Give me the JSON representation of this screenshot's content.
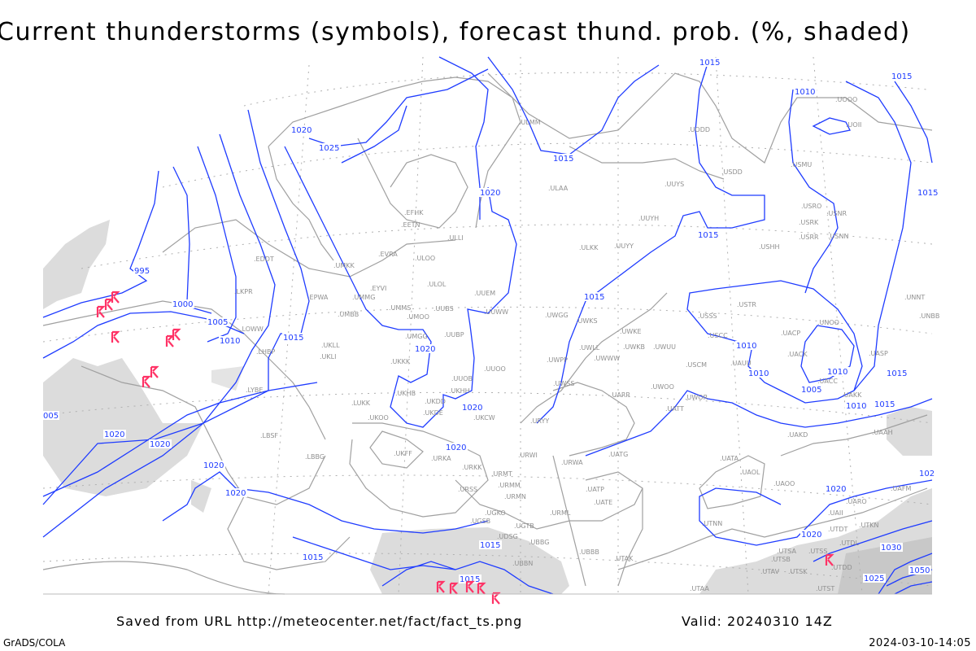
{
  "title": "Current thunderstorms (symbols), forecast thund. prob. (%, shaded)",
  "footer": {
    "saved_from": "Saved from URL http://meteocenter.net/fact/fact_ts.png",
    "valid": "Valid: 20240310 14Z",
    "software": "GrADS/COLA",
    "generated": "2024-03-10-14:05"
  },
  "colors": {
    "isobar": "#1f3cff",
    "coastline": "#a0a0a0",
    "thunderstorm_symbol": "#ff3366",
    "probability_shade": "#d8d8d8",
    "grid": "#a0a0a0"
  },
  "legend_symbols": {
    "thunderstorm": "thunderstorm-symbol-icon"
  },
  "isobar_labels": [
    "995",
    "1000",
    "1005",
    "1010",
    "1015",
    "1020",
    "1025",
    "1020",
    "1015",
    "1010",
    "1015",
    "1020",
    "1020",
    "1015",
    "1010",
    "1015",
    "1020",
    "1020",
    "1020",
    "1020",
    "1015",
    "1015",
    "1020",
    "1015",
    "1015",
    "1015",
    "1010",
    "1015",
    "1010",
    "1005",
    "1010",
    "1015",
    "1020",
    "1020",
    "1025",
    "1030",
    "1050",
    "005",
    "102"
  ],
  "stations": [
    "ULMM",
    "ULAA",
    "UUYS",
    "USDD",
    "USMU",
    "UODD",
    "UOOO",
    "UOII",
    "UUYH",
    "USRO",
    "USRK",
    "USNR",
    "USRR",
    "USNN",
    "ULKK",
    "UUYY",
    "USHH",
    "EFHK",
    "EETN",
    "ULLI",
    "EVRA",
    "ULOO",
    "UMKK",
    "EDDT",
    "EYVI",
    "ULOL",
    "UUEM",
    "EPWA",
    "UMMG",
    "LKPR",
    "UMMS",
    "UMOO",
    "UUBS",
    "UUWW",
    "UWGG",
    "UWKS",
    "UMBB",
    "LOWW",
    "UMGG",
    "UUBP",
    "UWKE",
    "UWKB",
    "UWUU",
    "UWLL",
    "UWWW",
    "USSS",
    "USTR",
    "USCC",
    "UNOO",
    "UACP",
    "UACK",
    "UASP",
    "UAUU",
    "USCM",
    "UNNT",
    "UNBB",
    "UACC",
    "UAKK",
    "UWOO",
    "UARR",
    "UWOR",
    "UATT",
    "UAKD",
    "UWPP",
    "UUOO",
    "UUOB",
    "UKKK",
    "UKLL",
    "UKLI",
    "LHBP",
    "LYBE",
    "UKHH",
    "UKDD",
    "UKHB",
    "UKDE",
    "UKCW",
    "URYY",
    "UWSS",
    "LUKK",
    "UKOO",
    "LBSF",
    "LBBG",
    "UKFF",
    "URKA",
    "URKK",
    "URWI",
    "URMT",
    "URWA",
    "UATG",
    "URSS",
    "URMM",
    "URMN",
    "UATP",
    "UATE",
    "UGKO",
    "UGSB",
    "URML",
    "UGTB",
    "UDSG",
    "UBBG",
    "UBBB",
    "UBBN",
    "UTAK",
    "UATA",
    "UAOL",
    "UAOO",
    "UTNN",
    "UAAH",
    "UAFM",
    "UARO",
    "UAII",
    "UTKN",
    "UTDT",
    "UTDL",
    "UTSA",
    "UTSS",
    "UTSB",
    "UTAV",
    "UTSK",
    "UTDD",
    "UTAA",
    "UTST"
  ]
}
